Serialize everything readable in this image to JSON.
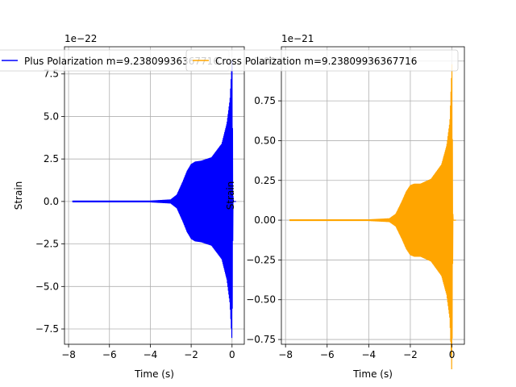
{
  "chart_data": [
    {
      "type": "line",
      "title": "",
      "xlabel": "Time (s)",
      "ylabel": "Strain",
      "offset_label": "1e−22",
      "xlim": [
        -8.2,
        0.6
      ],
      "ylim": [
        -8.4,
        9.1
      ],
      "x_ticks": [
        -8,
        -6,
        -4,
        -2,
        0
      ],
      "x_tick_labels": [
        "−8",
        "−6",
        "−4",
        "−2",
        "0"
      ],
      "y_ticks": [
        -7.5,
        -5.0,
        -2.5,
        0.0,
        2.5,
        5.0,
        7.5
      ],
      "y_tick_labels": [
        "−7.5",
        "−5.0",
        "−2.5",
        "0.0",
        "2.5",
        "5.0",
        "7.5"
      ],
      "grid": true,
      "legend": "top",
      "color": "#0000ff",
      "series": [
        {
          "name": "Plus Polarization m=9.23809936367716",
          "envelope": [
            {
              "x": -7.8,
              "y": 0.05
            },
            {
              "x": -4.0,
              "y": 0.05
            },
            {
              "x": -3.0,
              "y": 0.12
            },
            {
              "x": -2.7,
              "y": 0.4
            },
            {
              "x": -2.4,
              "y": 1.2
            },
            {
              "x": -2.2,
              "y": 1.8
            },
            {
              "x": -2.0,
              "y": 2.2
            },
            {
              "x": -1.8,
              "y": 2.35
            },
            {
              "x": -1.5,
              "y": 2.4
            },
            {
              "x": -1.0,
              "y": 2.6
            },
            {
              "x": -0.5,
              "y": 3.4
            },
            {
              "x": -0.25,
              "y": 4.6
            },
            {
              "x": -0.1,
              "y": 6.0
            },
            {
              "x": 0.0,
              "y": 8.3
            },
            {
              "x": 0.05,
              "y": 0.0
            },
            {
              "x": 0.2,
              "y": 0.0
            }
          ]
        }
      ]
    },
    {
      "type": "line",
      "title": "",
      "xlabel": "Time (s)",
      "ylabel": "Strain",
      "offset_label": "1e−21",
      "xlim": [
        -8.2,
        0.6
      ],
      "ylim": [
        -0.78,
        1.09
      ],
      "x_ticks": [
        -8,
        -6,
        -4,
        -2,
        0
      ],
      "x_tick_labels": [
        "−8",
        "−6",
        "−4",
        "−2",
        "0"
      ],
      "y_ticks": [
        -0.75,
        -0.5,
        -0.25,
        0.0,
        0.25,
        0.5,
        0.75,
        1.0
      ],
      "y_tick_labels": [
        "−0.75",
        "−0.50",
        "−0.25",
        "0.00",
        "0.25",
        "0.50",
        "0.75",
        "1.00"
      ],
      "grid": true,
      "legend": "top",
      "color": "#ffa500",
      "series": [
        {
          "name": "Cross Polarization m=9.23809936367716",
          "envelope": [
            {
              "x": -7.8,
              "y": 0.005
            },
            {
              "x": -4.0,
              "y": 0.005
            },
            {
              "x": -3.0,
              "y": 0.012
            },
            {
              "x": -2.7,
              "y": 0.04
            },
            {
              "x": -2.4,
              "y": 0.12
            },
            {
              "x": -2.2,
              "y": 0.18
            },
            {
              "x": -2.0,
              "y": 0.22
            },
            {
              "x": -1.8,
              "y": 0.23
            },
            {
              "x": -1.5,
              "y": 0.23
            },
            {
              "x": -1.0,
              "y": 0.26
            },
            {
              "x": -0.5,
              "y": 0.35
            },
            {
              "x": -0.25,
              "y": 0.47
            },
            {
              "x": -0.1,
              "y": 0.62
            },
            {
              "x": 0.0,
              "y": 0.98
            },
            {
              "x": 0.05,
              "y": 0.0
            },
            {
              "x": 0.2,
              "y": 0.0
            }
          ]
        }
      ]
    }
  ]
}
